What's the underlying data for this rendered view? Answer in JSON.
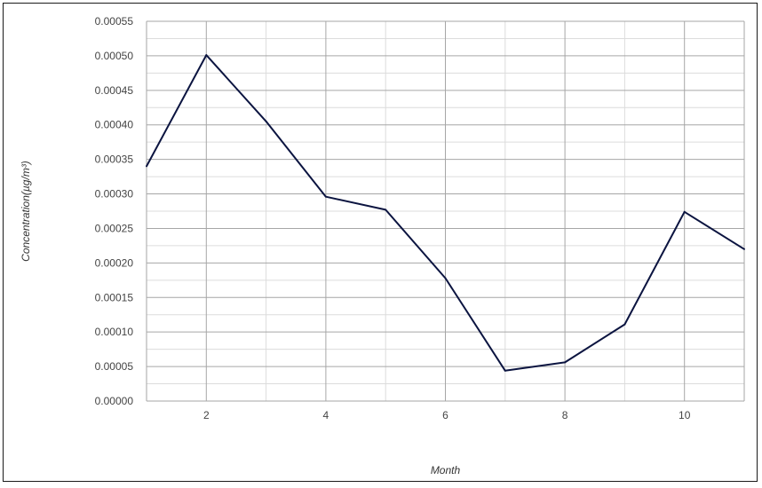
{
  "chart_data": {
    "type": "line",
    "title": "",
    "xlabel": "Month",
    "ylabel": "Concentration(µg/m³)",
    "x": [
      1,
      2,
      3,
      4,
      5,
      6,
      7,
      8,
      9,
      10,
      11
    ],
    "series": [
      {
        "values": [
          0.00034,
          0.000501,
          0.000405,
          0.000296,
          0.000277,
          0.000178,
          4.4e-05,
          5.6e-05,
          0.000111,
          0.000274,
          0.00022
        ]
      }
    ],
    "xlim": [
      1,
      11
    ],
    "ylim": [
      0,
      0.00055
    ],
    "x_ticks": [
      "2",
      "4",
      "6",
      "8",
      "10"
    ],
    "y_ticks": [
      "0.00000",
      "0.00005",
      "0.00010",
      "0.00015",
      "0.00020",
      "0.00025",
      "0.00030",
      "0.00035",
      "0.00040",
      "0.00045",
      "0.00050",
      "0.00055"
    ],
    "grid": true,
    "legend": "none",
    "colors": {
      "line": "#0b1440",
      "major_grid": "#a6a6a6",
      "minor_grid": "#dcdcdc",
      "text": "#444444"
    }
  }
}
